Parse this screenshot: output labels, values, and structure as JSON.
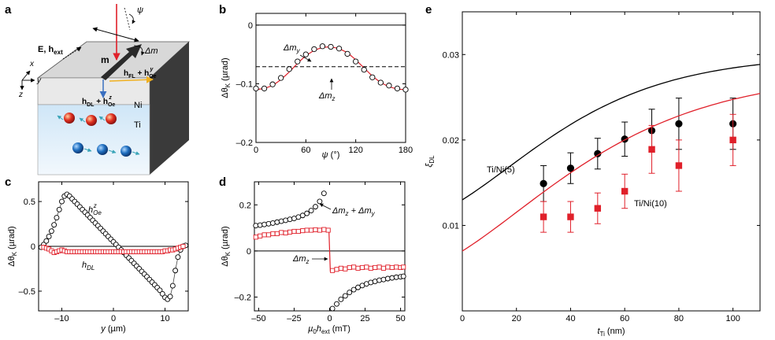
{
  "panel_labels": {
    "a": "a",
    "b": "b",
    "c": "c",
    "d": "d",
    "e": "e"
  },
  "panel_a": {
    "labels": {
      "e_field": "E, h",
      "e_field_sub": "ext",
      "psi": "ψ",
      "delta_m": "Δm",
      "m": "m",
      "h_fl": "h",
      "h_fl_sub": "FL",
      "h_fl_plus": " + h",
      "h_fl_plus_sub": "Oe",
      "h_fl_plus_sup": "y",
      "h_dl": "h",
      "h_dl_sub": "DL",
      "h_dl_plus": " + h",
      "h_dl_plus_sub": "Oe",
      "h_dl_plus_sup": "z",
      "ni": "Ni",
      "ti": "Ti",
      "axis_x": "x",
      "axis_y": "y",
      "axis_z": "z"
    },
    "colors": {
      "top": "#d6d6d6",
      "front_ni": "#e8e8e8",
      "front_ti": "#dceefb",
      "side": "#3a3a3a",
      "beam": "#e0202a",
      "arrow_fl": "#f0b020",
      "arrow_dl": "#3a6fc0"
    }
  },
  "chart_data": [
    {
      "id": "b",
      "type": "scatter",
      "xlabel_main": "ψ",
      "xlabel_unit": " (°)",
      "ylabel_main": "Δθ",
      "ylabel_sub": "K",
      "ylabel_unit": " (µrad)",
      "xlim": [
        0,
        180
      ],
      "ylim": [
        -0.2,
        0.02
      ],
      "xticks": [
        0,
        60,
        120,
        180
      ],
      "yticks": [
        0,
        -0.1,
        -0.2
      ],
      "yticklabels": [
        "0",
        "–0.1",
        "–0.2"
      ],
      "points_x": [
        0,
        10,
        20,
        30,
        40,
        50,
        60,
        70,
        80,
        90,
        100,
        110,
        120,
        130,
        140,
        150,
        160,
        170,
        180
      ],
      "points_y": [
        -0.108,
        -0.108,
        -0.101,
        -0.09,
        -0.075,
        -0.062,
        -0.05,
        -0.041,
        -0.036,
        -0.037,
        -0.04,
        -0.049,
        -0.062,
        -0.076,
        -0.089,
        -0.098,
        -0.103,
        -0.108,
        -0.11
      ],
      "fit_y": [
        -0.11,
        -0.108,
        -0.103,
        -0.093,
        -0.08,
        -0.065,
        -0.052,
        -0.043,
        -0.038,
        -0.037,
        -0.04,
        -0.047,
        -0.059,
        -0.073,
        -0.087,
        -0.098,
        -0.105,
        -0.109,
        -0.11
      ],
      "dashed_y": -0.071,
      "zero_y": 0,
      "ann_my": "Δm",
      "ann_my_sub": "y",
      "ann_mz": "Δm",
      "ann_mz_sub": "z",
      "colors": {
        "fit": "#e0202a",
        "points": "#000000"
      }
    },
    {
      "id": "c",
      "type": "scatter",
      "xlabel_main": "y",
      "xlabel_unit": " (µm)",
      "ylabel_main": "Δθ",
      "ylabel_sub": "K",
      "ylabel_unit": " (µrad)",
      "xlim": [
        -14.5,
        14.5
      ],
      "ylim": [
        -0.72,
        0.72
      ],
      "xticks": [
        -10,
        0,
        10
      ],
      "xticklabels": [
        "–10",
        "0",
        "10"
      ],
      "yticks": [
        0.5,
        0,
        -0.5
      ],
      "yticklabels": [
        "0.5",
        "0",
        "–0.5"
      ],
      "oe_x": [
        -14.0,
        -13.5,
        -13.0,
        -12.5,
        -12.0,
        -11.5,
        -11.0,
        -10.5,
        -10.0,
        -9.5,
        -9.0,
        -8.5,
        -8.0,
        -7.5,
        -7.0,
        -6.5,
        -6.0,
        -5.5,
        -5.0,
        -4.5,
        -4.0,
        -3.5,
        -3.0,
        -2.5,
        -2.0,
        -1.5,
        -1.0,
        -0.5,
        0.0,
        0.5,
        1.0,
        1.5,
        2.0,
        2.5,
        3.0,
        3.5,
        4.0,
        4.5,
        5.0,
        5.5,
        6.0,
        6.5,
        7.0,
        7.5,
        8.0,
        8.5,
        9.0,
        9.5,
        10.0,
        10.5,
        11.0,
        11.5,
        12.0,
        12.5,
        13.0,
        13.5,
        14.0
      ],
      "oe_y": [
        -0.01,
        0.02,
        0.06,
        0.11,
        0.17,
        0.24,
        0.32,
        0.41,
        0.5,
        0.56,
        0.58,
        0.56,
        0.53,
        0.5,
        0.47,
        0.44,
        0.41,
        0.38,
        0.35,
        0.32,
        0.29,
        0.26,
        0.23,
        0.2,
        0.17,
        0.14,
        0.11,
        0.08,
        0.05,
        0.02,
        -0.01,
        -0.04,
        -0.07,
        -0.1,
        -0.13,
        -0.16,
        -0.19,
        -0.22,
        -0.25,
        -0.28,
        -0.31,
        -0.34,
        -0.37,
        -0.4,
        -0.43,
        -0.46,
        -0.49,
        -0.53,
        -0.57,
        -0.59,
        -0.56,
        -0.44,
        -0.27,
        -0.12,
        -0.04,
        0.0,
        0.01
      ],
      "dl_x": [
        -13.5,
        -13.0,
        -12.5,
        -12.0,
        -11.5,
        -11.0,
        -10.5,
        -10.0,
        -9.5,
        -9.0,
        -8.5,
        -8.0,
        -7.5,
        -7.0,
        -6.5,
        -6.0,
        -5.5,
        -5.0,
        -4.5,
        -4.0,
        -3.5,
        -3.0,
        -2.5,
        -2.0,
        -1.5,
        -1.0,
        -0.5,
        0.0,
        0.5,
        1.0,
        1.5,
        2.0,
        2.5,
        3.0,
        3.5,
        4.0,
        4.5,
        5.0,
        5.5,
        6.0,
        6.5,
        7.0,
        7.5,
        8.0,
        8.5,
        9.0,
        9.5,
        10.0,
        10.5,
        11.0,
        11.5,
        12.0,
        12.5,
        13.0,
        13.5
      ],
      "dl_y": [
        -0.01,
        -0.02,
        -0.03,
        -0.05,
        -0.07,
        -0.06,
        -0.05,
        -0.04,
        -0.05,
        -0.06,
        -0.06,
        -0.06,
        -0.06,
        -0.06,
        -0.06,
        -0.06,
        -0.06,
        -0.06,
        -0.06,
        -0.06,
        -0.06,
        -0.06,
        -0.06,
        -0.06,
        -0.06,
        -0.06,
        -0.06,
        -0.06,
        -0.06,
        -0.06,
        -0.06,
        -0.06,
        -0.06,
        -0.06,
        -0.06,
        -0.06,
        -0.06,
        -0.06,
        -0.06,
        -0.06,
        -0.06,
        -0.06,
        -0.06,
        -0.06,
        -0.06,
        -0.06,
        -0.06,
        -0.05,
        -0.05,
        -0.04,
        -0.04,
        -0.03,
        -0.02,
        -0.01,
        0.0
      ],
      "ann_oe": "h",
      "ann_oe_sub": "Oe",
      "ann_oe_sup": "z",
      "ann_dl": "h",
      "ann_dl_sub": "DL",
      "colors": {
        "oe": "#000000",
        "dl": "#e0202a"
      }
    },
    {
      "id": "d",
      "type": "scatter",
      "xlabel_main": "µ",
      "xlabel_sub0": "0",
      "xlabel_mid": "h",
      "xlabel_sub": "ext",
      "xlabel_unit": " (mT)",
      "ylabel_main": "Δθ",
      "ylabel_sub": "K",
      "ylabel_unit": " (µrad)",
      "xlim": [
        -53,
        53
      ],
      "ylim": [
        -0.26,
        0.3
      ],
      "xticks": [
        -50,
        -25,
        0,
        25,
        50
      ],
      "xticklabels": [
        "–50",
        "–25",
        "0",
        "25",
        "50"
      ],
      "yticks": [
        0.2,
        0,
        -0.2
      ],
      "yticklabels": [
        "0.2",
        "0",
        "–0.2"
      ],
      "circ_x": [
        -52,
        -49,
        -46,
        -43,
        -40,
        -37,
        -34,
        -31,
        -28,
        -25,
        -22,
        -19,
        -16,
        -13,
        -10,
        -7,
        -4,
        2,
        5,
        8,
        11,
        14,
        17,
        20,
        23,
        26,
        29,
        32,
        35,
        38,
        41,
        44,
        47,
        50,
        52
      ],
      "circ_y": [
        0.11,
        0.112,
        0.115,
        0.118,
        0.121,
        0.125,
        0.129,
        0.133,
        0.137,
        0.141,
        0.147,
        0.154,
        0.163,
        0.175,
        0.192,
        0.215,
        0.25,
        -0.25,
        -0.23,
        -0.21,
        -0.195,
        -0.18,
        -0.168,
        -0.158,
        -0.15,
        -0.143,
        -0.137,
        -0.132,
        -0.127,
        -0.124,
        -0.12,
        -0.117,
        -0.114,
        -0.112,
        -0.11
      ],
      "sq_x": [
        -52,
        -49,
        -46,
        -43,
        -40,
        -37,
        -34,
        -31,
        -28,
        -25,
        -22,
        -19,
        -16,
        -13,
        -10,
        -7,
        -4,
        -1,
        2,
        5,
        8,
        11,
        14,
        17,
        20,
        23,
        26,
        29,
        32,
        35,
        38,
        41,
        44,
        47,
        50,
        52
      ],
      "sq_y": [
        0.06,
        0.065,
        0.07,
        0.07,
        0.075,
        0.075,
        0.08,
        0.078,
        0.082,
        0.085,
        0.085,
        0.088,
        0.09,
        0.09,
        0.092,
        0.09,
        0.093,
        0.09,
        -0.085,
        -0.08,
        -0.075,
        -0.078,
        -0.072,
        -0.07,
        -0.075,
        -0.072,
        -0.07,
        -0.075,
        -0.072,
        -0.07,
        -0.075,
        -0.07,
        -0.072,
        -0.07,
        -0.072,
        -0.07
      ],
      "fit_x": [
        -53,
        -40,
        -25,
        -10,
        -3,
        -0.5,
        0.5,
        3,
        10,
        25,
        40,
        53
      ],
      "fit_y": [
        0.062,
        0.072,
        0.083,
        0.09,
        0.092,
        0.092,
        -0.088,
        -0.085,
        -0.078,
        -0.074,
        -0.072,
        -0.071
      ],
      "ann_sum_a": "Δm",
      "ann_sum_a_sub": "z",
      "ann_sum_b": " + Δm",
      "ann_sum_b_sub": "y",
      "ann_mz": "Δm",
      "ann_mz_sub": "z",
      "colors": {
        "circ": "#000000",
        "sq": "#e0202a",
        "fit": "#e0202a"
      }
    },
    {
      "id": "e",
      "type": "scatter",
      "xlabel_main": "t",
      "xlabel_sub": "Ti",
      "xlabel_unit": " (nm)",
      "ylabel_main": "ξ",
      "ylabel_sub": "DL",
      "xlim": [
        0,
        110
      ],
      "ylim": [
        0,
        0.035
      ],
      "xticks": [
        0,
        20,
        40,
        60,
        80,
        100
      ],
      "yticks": [
        0.01,
        0.02,
        0.03
      ],
      "series": [
        {
          "name": "Ti/Ni(5)",
          "x": [
            30,
            40,
            50,
            60,
            70,
            80,
            100
          ],
          "y": [
            0.0149,
            0.0167,
            0.0184,
            0.0201,
            0.0211,
            0.0219,
            0.0219
          ],
          "err": [
            0.0021,
            0.0018,
            0.0018,
            0.002,
            0.0025,
            0.003,
            0.003
          ],
          "fit_y0": 0.013,
          "fit_ymax": 0.03,
          "fit_lambda": 64
        },
        {
          "name": "Ti/Ni(10)",
          "x": [
            30,
            40,
            50,
            60,
            70,
            80,
            100
          ],
          "y": [
            0.011,
            0.011,
            0.012,
            0.014,
            0.0189,
            0.017,
            0.02
          ],
          "err": [
            0.0018,
            0.0018,
            0.0018,
            0.002,
            0.0028,
            0.003,
            0.003
          ],
          "fit_y0": 0.007,
          "fit_ymax": 0.028,
          "fit_lambda": 79
        }
      ],
      "colors": {
        "series0": "#000000",
        "series1": "#e0202a"
      }
    }
  ]
}
